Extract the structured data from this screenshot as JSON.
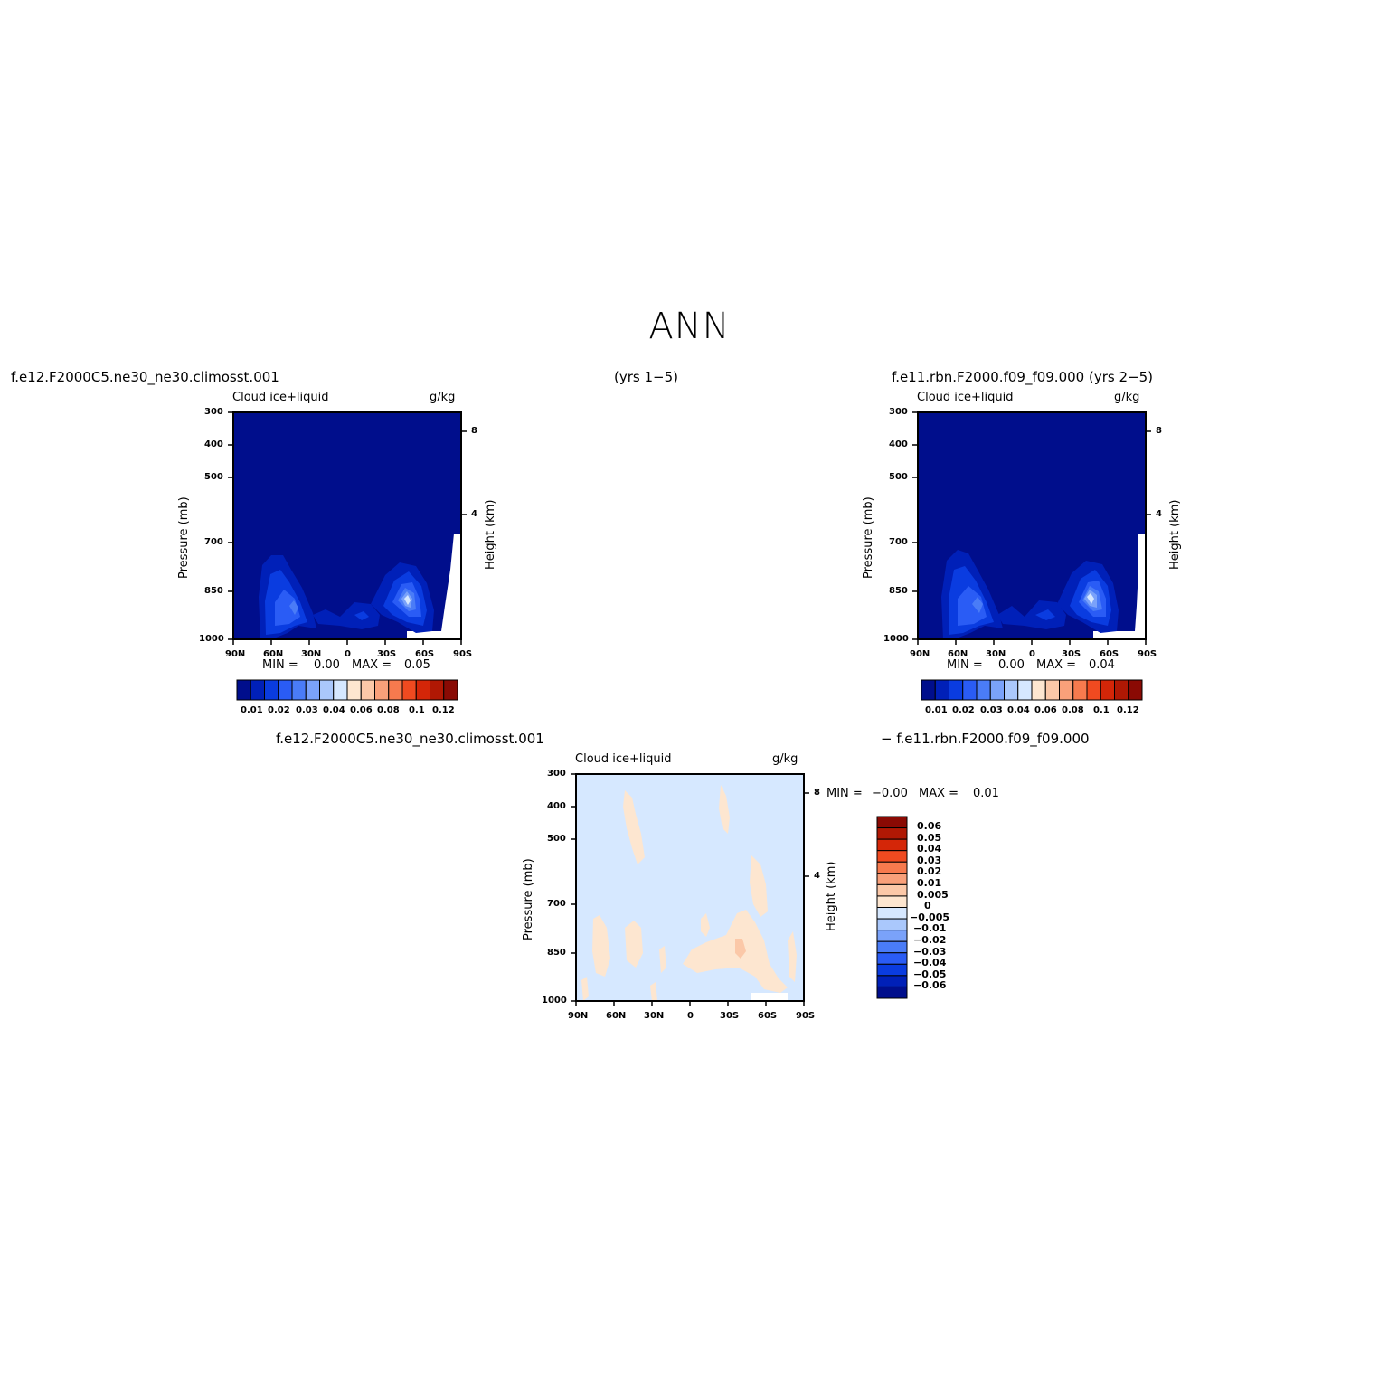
{
  "title": "ANN",
  "header": {
    "case_test": "f.e12.F2000C5.ne30_ne30.climosst.001",
    "years_test": "(yrs 1−5)",
    "case_control": "f.e11.rbn.F2000.f09_f09.000 (yrs 2−5)"
  },
  "diff_header": {
    "left": "f.e12.F2000C5.ne30_ne30.climosst.001",
    "right": "− f.e11.rbn.F2000.f09_f09.000"
  },
  "colors": {
    "background_test": "#000e8c",
    "diff_background": "#d6e8ff",
    "frame": "#000000"
  },
  "chart_data": [
    {
      "type": "heatmap",
      "panel": "test",
      "variable": "Cloud  ice+liquid",
      "units": "g/kg",
      "ylabel": "Pressure  (mb)",
      "ylabel_right": "Height  (km)",
      "x_ticks": [
        "90N",
        "60N",
        "30N",
        "0",
        "30S",
        "60S",
        "90S"
      ],
      "y_ticks": [
        "300",
        "400",
        "500",
        "700",
        "850",
        "1000"
      ],
      "y_ticks_right": [
        "8",
        "4"
      ],
      "min_label": "MIN =",
      "min_value": "0.00",
      "max_label": "MAX =",
      "max_value": "0.05",
      "colorbar_labels": [
        "0.01",
        "0.02",
        "0.03",
        "0.04",
        "0.06",
        "0.08",
        "0.1",
        "0.12"
      ],
      "colorbar_colors": [
        "#000e8c",
        "#0020b8",
        "#0a3ce0",
        "#2a5cf5",
        "#4a7cf7",
        "#7aa2fa",
        "#aac8fc",
        "#d6e8ff",
        "#fde6d0",
        "#fbc8a8",
        "#f9a07a",
        "#f77a4e",
        "#f04a20",
        "#d42608",
        "#b01804",
        "#8a0a04"
      ],
      "features": [
        {
          "lat": "60N",
          "pressure_mb": 860,
          "level": 0.03
        },
        {
          "lat": "50S",
          "pressure_mb": 840,
          "level": 0.05
        },
        {
          "lat": "0",
          "pressure_mb": 900,
          "level": 0.02
        }
      ]
    },
    {
      "type": "heatmap",
      "panel": "control",
      "variable": "Cloud  ice+liquid",
      "units": "g/kg",
      "ylabel": "Pressure  (mb)",
      "ylabel_right": "Height  (km)",
      "x_ticks": [
        "90N",
        "60N",
        "30N",
        "0",
        "30S",
        "60S",
        "90S"
      ],
      "y_ticks": [
        "300",
        "400",
        "500",
        "700",
        "850",
        "1000"
      ],
      "y_ticks_right": [
        "8",
        "4"
      ],
      "min_label": "MIN =",
      "min_value": "0.00",
      "max_label": "MAX =",
      "max_value": "0.04",
      "colorbar_labels": [
        "0.01",
        "0.02",
        "0.03",
        "0.04",
        "0.06",
        "0.08",
        "0.1",
        "0.12"
      ],
      "colorbar_colors": [
        "#000e8c",
        "#0020b8",
        "#0a3ce0",
        "#2a5cf5",
        "#4a7cf7",
        "#7aa2fa",
        "#aac8fc",
        "#d6e8ff",
        "#fde6d0",
        "#fbc8a8",
        "#f9a07a",
        "#f77a4e",
        "#f04a20",
        "#d42608",
        "#b01804",
        "#8a0a04"
      ],
      "features": [
        {
          "lat": "60N",
          "pressure_mb": 860,
          "level": 0.03
        },
        {
          "lat": "50S",
          "pressure_mb": 840,
          "level": 0.04
        },
        {
          "lat": "0",
          "pressure_mb": 900,
          "level": 0.02
        }
      ]
    },
    {
      "type": "heatmap",
      "panel": "difference",
      "variable": "Cloud  ice+liquid",
      "units": "g/kg",
      "ylabel": "Pressure  (mb)",
      "ylabel_right": "Height  (km)",
      "x_ticks": [
        "90N",
        "60N",
        "30N",
        "0",
        "30S",
        "60S",
        "90S"
      ],
      "y_ticks": [
        "300",
        "400",
        "500",
        "700",
        "850",
        "1000"
      ],
      "y_ticks_right": [
        "8",
        "4"
      ],
      "min_label": "MIN =",
      "min_value": "−0.00",
      "max_label": "MAX =",
      "max_value": "0.01",
      "colorbar_labels": [
        "0.06",
        "0.05",
        "0.04",
        "0.03",
        "0.02",
        "0.01",
        "0.005",
        "0",
        "−0.005",
        "−0.01",
        "−0.02",
        "−0.03",
        "−0.04",
        "−0.05",
        "−0.06"
      ],
      "colorbar_colors": [
        "#8a0a04",
        "#b01804",
        "#d42608",
        "#f04a20",
        "#f77a4e",
        "#f9a07a",
        "#fbc8a8",
        "#fde6d0",
        "#d6e8ff",
        "#aac8fc",
        "#7aa2fa",
        "#4a7cf7",
        "#2a5cf5",
        "#0a3ce0",
        "#0020b8",
        "#000e8c"
      ]
    }
  ]
}
